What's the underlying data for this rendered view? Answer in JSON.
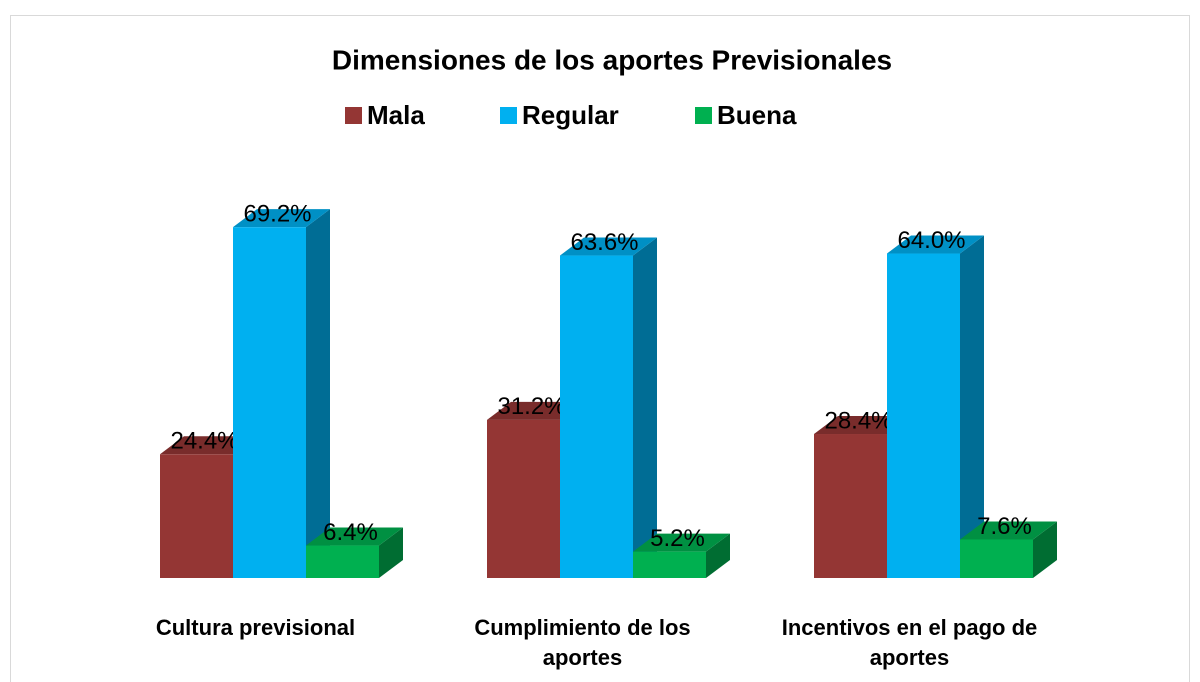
{
  "chart_data": {
    "type": "bar3d",
    "title": "Dimensiones de los aportes Previsionales",
    "categories": [
      "Cultura previsional",
      "Cumplimiento de los aportes",
      "Incentivos en el pago de aportes"
    ],
    "series": [
      {
        "name": "Mala",
        "color": "#943634",
        "values": [
          24.4,
          31.2,
          28.4
        ],
        "value_labels": [
          "24.4%",
          "31.2%",
          "28.4%"
        ]
      },
      {
        "name": "Regular",
        "color": "#00b0f0",
        "values": [
          69.2,
          63.6,
          64.0
        ],
        "value_labels": [
          "69.2%",
          "63.6%",
          "64.0%"
        ]
      },
      {
        "name": "Buena",
        "color": "#00b050",
        "values": [
          6.4,
          5.2,
          7.6
        ],
        "value_labels": [
          "6.4%",
          "5.2%",
          "7.6%"
        ]
      }
    ]
  }
}
